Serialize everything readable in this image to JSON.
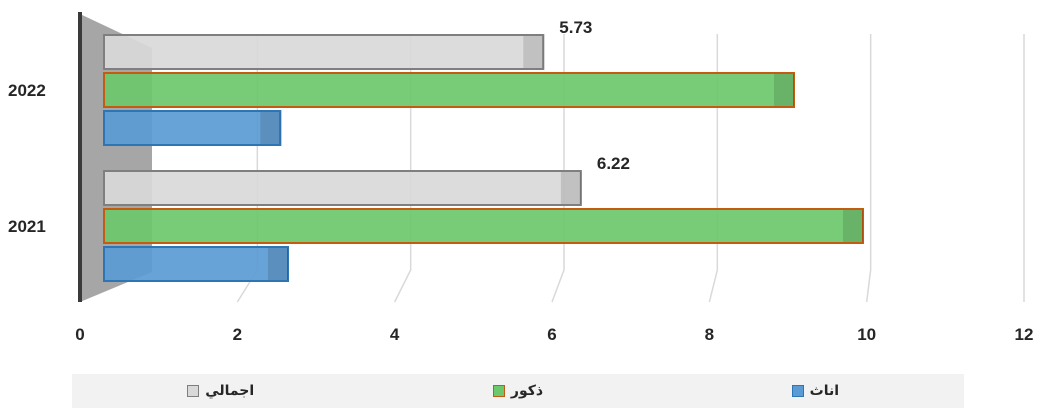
{
  "chart_data": {
    "type": "bar",
    "orientation": "horizontal",
    "categories": [
      "2021",
      "2022"
    ],
    "series": [
      {
        "name": "اناث",
        "values": [
          2.4,
          2.3
        ],
        "color": "#5b9bd5",
        "stroke": "#2e75b6"
      },
      {
        "name": "ذكور",
        "values": [
          9.9,
          9.0
        ],
        "color": "#6cc86c",
        "stroke": "#c55a11"
      },
      {
        "name": "اجمالي",
        "values": [
          6.22,
          5.73
        ],
        "color": "#d9d9d9",
        "stroke": "#7f7f7f"
      }
    ],
    "data_labels": {
      "series": "اجمالي",
      "labels": [
        "6.22",
        "5.73"
      ]
    },
    "xlim": [
      0,
      12
    ],
    "xticks": [
      "0",
      "2",
      "4",
      "6",
      "8",
      "10",
      "12"
    ],
    "gridlines": true,
    "legend_position": "bottom",
    "style": "3d"
  }
}
